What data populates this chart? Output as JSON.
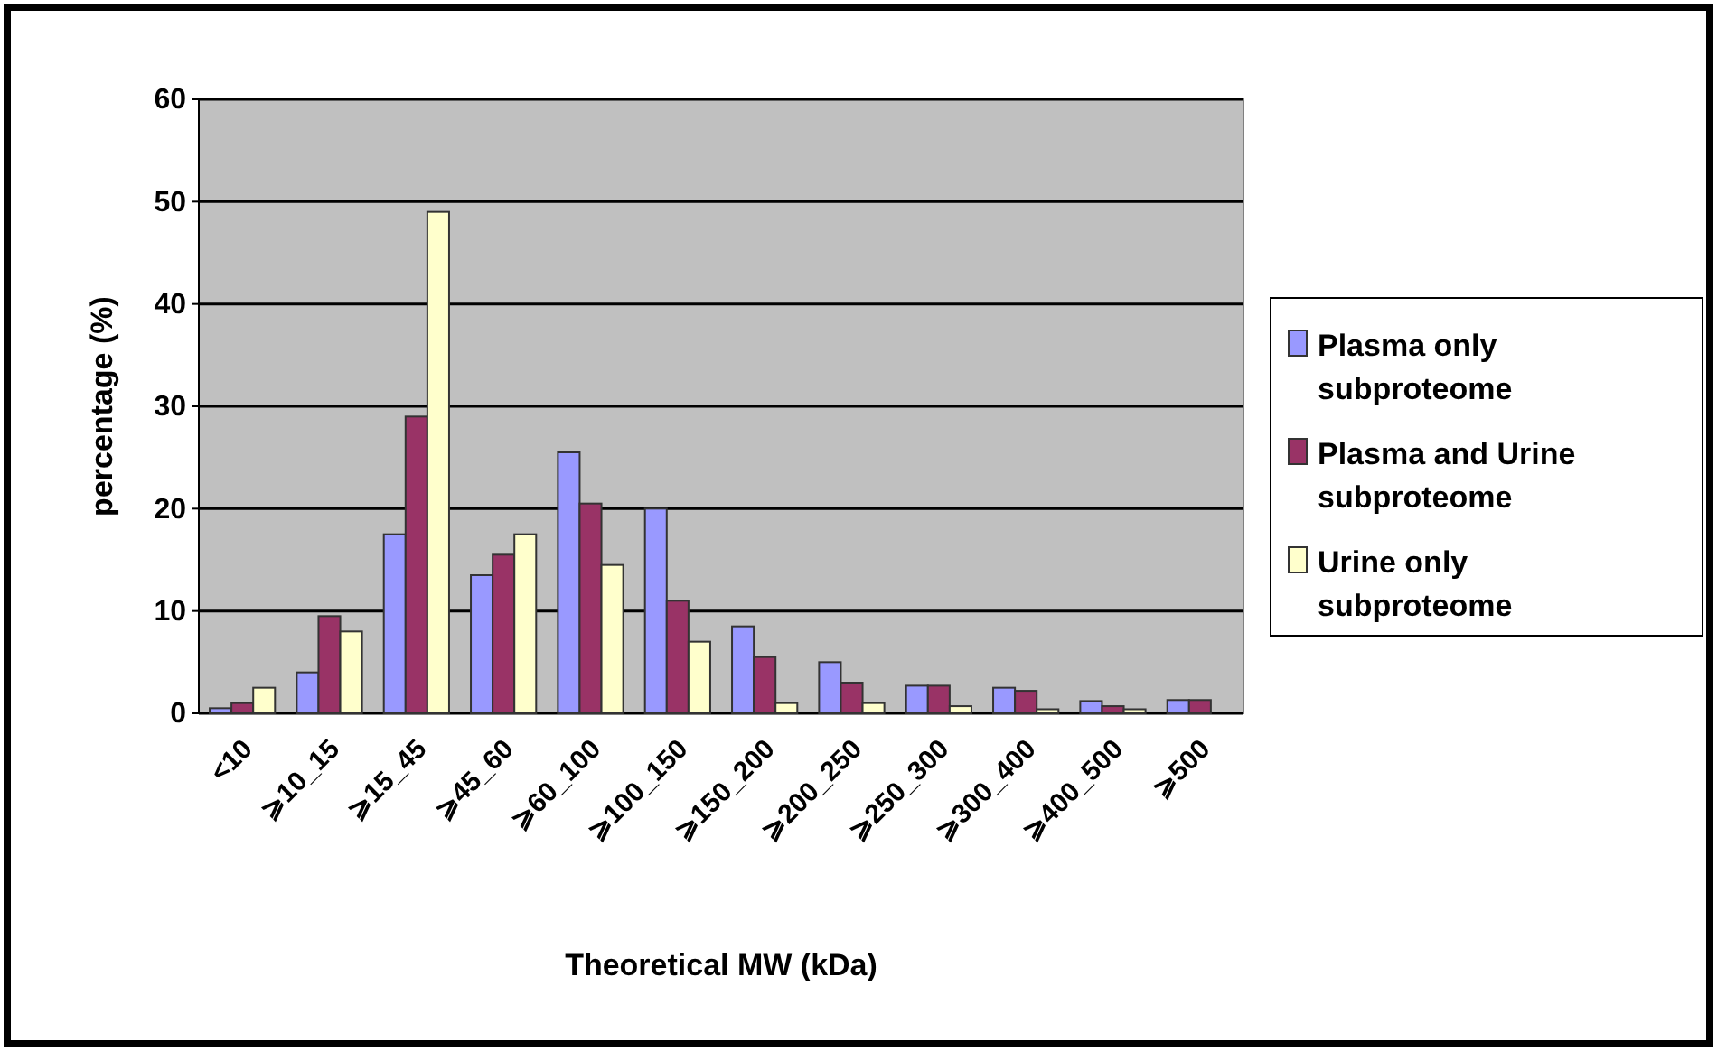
{
  "chart_data": {
    "type": "bar",
    "xlabel": "Theoretical MW (kDa)",
    "ylabel": "percentage (%)",
    "categories": [
      "<10",
      "⩾10_15",
      "⩾15_45",
      "⩾45_60",
      "⩾60_100",
      "⩾100_150",
      "⩾150_200",
      "⩾200_250",
      "⩾250_300",
      "⩾300_400",
      "⩾400_500",
      "⩾500"
    ],
    "series": [
      {
        "name": "Plasma only subproteome",
        "color": "#9999ff",
        "values": [
          0.5,
          4,
          17.5,
          13.5,
          25.5,
          20,
          8.5,
          5,
          2.7,
          2.5,
          1.2,
          1.3
        ]
      },
      {
        "name": "Plasma and Urine subproteome",
        "color": "#993366",
        "values": [
          1,
          9.5,
          29,
          15.5,
          20.5,
          11,
          5.5,
          3,
          2.7,
          2.2,
          0.7,
          1.3
        ]
      },
      {
        "name": "Urine only subproteome",
        "color": "#ffffcc",
        "values": [
          2.5,
          8,
          49,
          17.5,
          14.5,
          7,
          1,
          1,
          0.7,
          0.4,
          0.4,
          0
        ]
      }
    ],
    "ylim": [
      0,
      60
    ],
    "yticks": [
      0,
      10,
      20,
      30,
      40,
      50,
      60
    ],
    "grid": "y",
    "legend": "right"
  }
}
